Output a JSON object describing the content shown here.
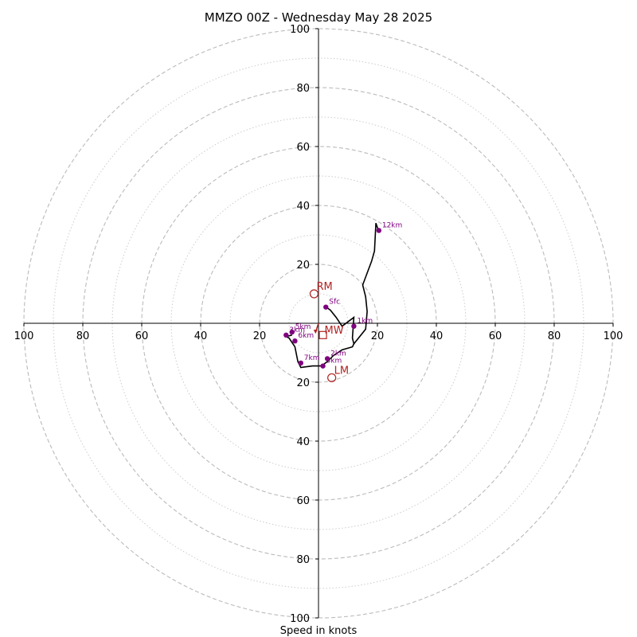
{
  "chart_data": {
    "type": "hodograph",
    "title": "MMZO 00Z - Wednesday May 28 2025",
    "xlabel": "Speed in knots",
    "units": "knots",
    "axis_range": [
      -100,
      100
    ],
    "rings_dashed": [
      20,
      40,
      60,
      80,
      100
    ],
    "rings_dotted": [
      10,
      30,
      50,
      70,
      90
    ],
    "x_ticks": [
      {
        "value": -100,
        "label": "100"
      },
      {
        "value": -80,
        "label": "80"
      },
      {
        "value": -60,
        "label": "60"
      },
      {
        "value": -40,
        "label": "40"
      },
      {
        "value": -20,
        "label": "20"
      },
      {
        "value": 20,
        "label": "20"
      },
      {
        "value": 40,
        "label": "40"
      },
      {
        "value": 60,
        "label": "60"
      },
      {
        "value": 80,
        "label": "80"
      },
      {
        "value": 100,
        "label": "100"
      }
    ],
    "y_ticks": [
      {
        "value": 100,
        "label": "100"
      },
      {
        "value": 80,
        "label": "80"
      },
      {
        "value": 60,
        "label": "60"
      },
      {
        "value": 40,
        "label": "40"
      },
      {
        "value": 20,
        "label": "20"
      },
      {
        "value": -20,
        "label": "20"
      },
      {
        "value": -40,
        "label": "40"
      },
      {
        "value": -60,
        "label": "60"
      },
      {
        "value": -80,
        "label": "80"
      },
      {
        "value": -100,
        "label": "100"
      }
    ],
    "trace": [
      [
        2.5,
        5.5
      ],
      [
        4,
        4.5
      ],
      [
        6,
        2
      ],
      [
        8,
        -1
      ],
      [
        12,
        2
      ],
      [
        11.5,
        -5
      ],
      [
        12,
        -7
      ],
      [
        16,
        -2
      ],
      [
        16.5,
        4
      ],
      [
        16,
        9
      ],
      [
        15,
        13
      ],
      [
        18,
        21
      ],
      [
        19,
        24.5
      ],
      [
        19.5,
        34
      ],
      [
        20.5,
        31
      ]
    ],
    "trace_lower": [
      [
        12,
        -7
      ],
      [
        11.5,
        -8
      ],
      [
        8,
        -9
      ],
      [
        5,
        -11
      ],
      [
        3,
        -13
      ],
      [
        1,
        -14.5
      ],
      [
        -2,
        -14.5
      ],
      [
        -6,
        -15
      ],
      [
        -7,
        -13
      ],
      [
        -8,
        -8
      ],
      [
        -10,
        -5
      ],
      [
        -11,
        -4.5
      ],
      [
        -9,
        -4
      ]
    ],
    "height_markers": [
      {
        "label": "Sfc",
        "x": 2.5,
        "y": 5.5
      },
      {
        "label": "1km",
        "x": 12,
        "y": -1
      },
      {
        "label": "2km",
        "x": 3,
        "y": -12
      },
      {
        "label": "3km",
        "x": 1.5,
        "y": -14.5
      },
      {
        "label": "7km",
        "x": -6,
        "y": -13.5
      },
      {
        "label": "6km",
        "x": -8,
        "y": -6
      },
      {
        "label": "5km",
        "x": -9,
        "y": -3
      },
      {
        "label": "3km",
        "x": -11,
        "y": -4
      },
      {
        "label": "12km",
        "x": 20.5,
        "y": 31.5
      }
    ],
    "storm_motion": [
      {
        "label": "RM",
        "x": -1.5,
        "y": 10,
        "marker": "circle"
      },
      {
        "label": "LM",
        "x": 4.5,
        "y": -18.5,
        "marker": "circle"
      },
      {
        "label": "MW",
        "x": 1.5,
        "y": -4,
        "marker": "square"
      }
    ],
    "vector": {
      "x": -1,
      "y": -3
    },
    "colors": {
      "trace": "#000000",
      "markers": "#800080",
      "storm_motion": "#b22222",
      "rings": "#bbbbbb",
      "axes": "#000000"
    }
  }
}
